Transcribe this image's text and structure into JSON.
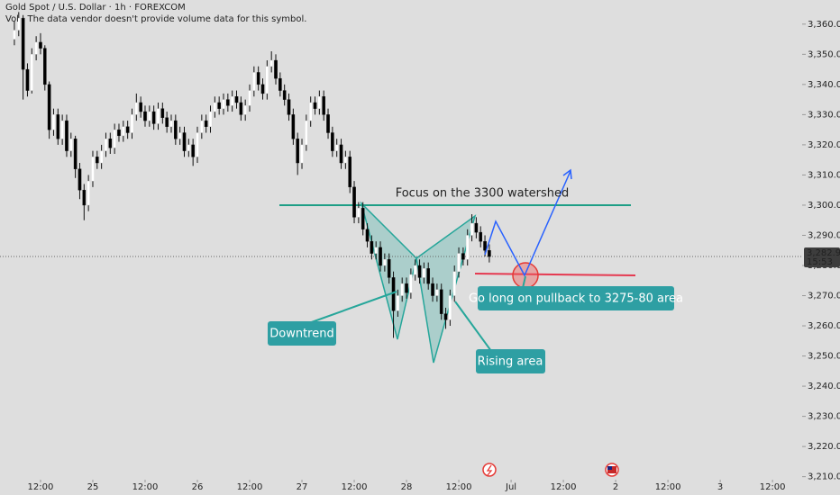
{
  "header": {
    "symbol_title": "Gold Spot / U.S. Dollar · 1h · FOREXCOM",
    "volume_note": "Vol · The data vendor doesn't provide volume data for this symbol."
  },
  "annotations": {
    "watershed": "Focus on the 3300 watershed",
    "downtrend": "Downtrend",
    "rising": "Rising area",
    "long": "Go long on pullback to 3275-80 area"
  },
  "chart_data": {
    "type": "candlestick",
    "up_color": "#ffffff",
    "down_color": "#000000",
    "outline_color": "#111111",
    "xlim": [
      -3.3,
      180.8
    ],
    "ylim": [
      3209,
      3368
    ],
    "xticks": [
      {
        "value": 6,
        "label": "12:00"
      },
      {
        "value": 18,
        "label": "25"
      },
      {
        "value": 30,
        "label": "12:00"
      },
      {
        "value": 42,
        "label": "26"
      },
      {
        "value": 54,
        "label": "12:00"
      },
      {
        "value": 66,
        "label": "27"
      },
      {
        "value": 78,
        "label": "12:00"
      },
      {
        "value": 90,
        "label": "28"
      },
      {
        "value": 102,
        "label": "12:00"
      },
      {
        "value": 114,
        "label": "Jul"
      },
      {
        "value": 126,
        "label": "12:00"
      },
      {
        "value": 138,
        "label": "2"
      },
      {
        "value": 150,
        "label": "12:00"
      },
      {
        "value": 162,
        "label": "3"
      },
      {
        "value": 174,
        "label": "12:00"
      }
    ],
    "yticks": [
      {
        "value": 3210,
        "label": "3,210.00"
      },
      {
        "value": 3220,
        "label": "3,220.00"
      },
      {
        "value": 3230,
        "label": "3,230.00"
      },
      {
        "value": 3240,
        "label": "3,240.00"
      },
      {
        "value": 3250,
        "label": "3,250.00"
      },
      {
        "value": 3260,
        "label": "3,260.00"
      },
      {
        "value": 3270,
        "label": "3,270.00"
      },
      {
        "value": 3280,
        "label": "3,280.00"
      },
      {
        "value": 3290,
        "label": "3,290.00"
      },
      {
        "value": 3300,
        "label": "3,300.00"
      },
      {
        "value": 3310,
        "label": "3,310.00"
      },
      {
        "value": 3320,
        "label": "3,320.00"
      },
      {
        "value": 3330,
        "label": "3,330.00"
      },
      {
        "value": 3340,
        "label": "3,340.00"
      },
      {
        "value": 3350,
        "label": "3,350.00"
      },
      {
        "value": 3360,
        "label": "3,360.00"
      }
    ],
    "last_price": {
      "value": 3282.97,
      "label": "3,282.97"
    },
    "countdown": "15:53",
    "watershed_level": 3300,
    "watershed_color": "#1e9e86",
    "entry_level": 3277,
    "entry_color": "#e53950",
    "open": [
      3355,
      3358,
      3362,
      3345,
      3338,
      3350,
      3354,
      3352,
      3340,
      3325,
      3330,
      3322,
      3328,
      3318,
      3322,
      3312,
      3305,
      3300,
      3308,
      3316,
      3314,
      3318,
      3322,
      3319,
      3325,
      3323,
      3326,
      3324,
      3330,
      3334,
      3331,
      3328,
      3331,
      3327,
      3332,
      3329,
      3326,
      3328,
      3322,
      3324,
      3318,
      3320,
      3316,
      3324,
      3328,
      3326,
      3331,
      3334,
      3332,
      3335,
      3333,
      3336,
      3334,
      3330,
      3333,
      3338,
      3344,
      3340,
      3337,
      3346,
      3348,
      3342,
      3338,
      3335,
      3330,
      3322,
      3314,
      3320,
      3328,
      3334,
      3332,
      3336,
      3330,
      3324,
      3318,
      3320,
      3314,
      3316,
      3306,
      3296,
      3299,
      3292,
      3288,
      3284,
      3286,
      3280,
      3282,
      3276,
      3265,
      3270,
      3274,
      3271,
      3277,
      3280,
      3276,
      3279,
      3274,
      3270,
      3272,
      3264,
      3262,
      3270,
      3278,
      3284,
      3282,
      3290,
      3294,
      3291,
      3288,
      3285
    ],
    "high": [
      3361,
      3364,
      3363,
      3347,
      3352,
      3356,
      3357,
      3353,
      3341,
      3332,
      3332,
      3330,
      3330,
      3324,
      3323,
      3314,
      3307,
      3310,
      3318,
      3318,
      3320,
      3324,
      3324,
      3327,
      3327,
      3328,
      3328,
      3332,
      3337,
      3336,
      3333,
      3333,
      3333,
      3334,
      3334,
      3331,
      3330,
      3330,
      3326,
      3326,
      3322,
      3322,
      3326,
      3330,
      3330,
      3333,
      3336,
      3336,
      3337,
      3337,
      3338,
      3338,
      3336,
      3335,
      3340,
      3346,
      3346,
      3342,
      3348,
      3351,
      3350,
      3344,
      3340,
      3337,
      3332,
      3324,
      3322,
      3330,
      3336,
      3336,
      3338,
      3338,
      3332,
      3326,
      3322,
      3322,
      3318,
      3318,
      3308,
      3301,
      3301,
      3294,
      3290,
      3288,
      3288,
      3284,
      3284,
      3278,
      3272,
      3276,
      3276,
      3279,
      3282,
      3282,
      3281,
      3281,
      3276,
      3274,
      3274,
      3266,
      3272,
      3280,
      3286,
      3286,
      3292,
      3297,
      3296,
      3293,
      3290,
      3287
    ],
    "low": [
      3353,
      3356,
      3335,
      3336,
      3337,
      3348,
      3350,
      3338,
      3322,
      3323,
      3320,
      3320,
      3316,
      3316,
      3309,
      3302,
      3295,
      3298,
      3306,
      3312,
      3312,
      3316,
      3317,
      3317,
      3321,
      3321,
      3322,
      3322,
      3328,
      3329,
      3326,
      3326,
      3325,
      3325,
      3327,
      3324,
      3324,
      3320,
      3320,
      3316,
      3316,
      3313,
      3314,
      3322,
      3324,
      3324,
      3329,
      3330,
      3330,
      3331,
      3331,
      3332,
      3328,
      3328,
      3331,
      3336,
      3338,
      3335,
      3335,
      3344,
      3340,
      3336,
      3333,
      3328,
      3320,
      3310,
      3312,
      3318,
      3326,
      3330,
      3330,
      3328,
      3322,
      3316,
      3316,
      3312,
      3312,
      3304,
      3294,
      3294,
      3290,
      3286,
      3282,
      3282,
      3278,
      3278,
      3274,
      3256,
      3263,
      3268,
      3269,
      3269,
      3275,
      3274,
      3274,
      3272,
      3268,
      3268,
      3262,
      3259,
      3260,
      3268,
      3276,
      3280,
      3280,
      3288,
      3289,
      3286,
      3283,
      3281
    ],
    "close": [
      3358,
      3362,
      3345,
      3338,
      3350,
      3354,
      3352,
      3340,
      3325,
      3330,
      3322,
      3328,
      3318,
      3322,
      3312,
      3305,
      3300,
      3308,
      3316,
      3314,
      3318,
      3322,
      3319,
      3325,
      3323,
      3326,
      3324,
      3330,
      3334,
      3331,
      3328,
      3331,
      3327,
      3332,
      3329,
      3326,
      3328,
      3322,
      3324,
      3318,
      3320,
      3316,
      3324,
      3328,
      3326,
      3331,
      3334,
      3332,
      3335,
      3333,
      3336,
      3334,
      3330,
      3333,
      3338,
      3344,
      3340,
      3337,
      3346,
      3348,
      3342,
      3338,
      3335,
      3330,
      3322,
      3314,
      3320,
      3328,
      3334,
      3332,
      3336,
      3330,
      3324,
      3318,
      3320,
      3314,
      3316,
      3306,
      3296,
      3299,
      3292,
      3288,
      3284,
      3286,
      3280,
      3282,
      3276,
      3265,
      3270,
      3274,
      3271,
      3277,
      3280,
      3276,
      3279,
      3274,
      3270,
      3272,
      3264,
      3262,
      3270,
      3278,
      3284,
      3282,
      3290,
      3294,
      3291,
      3288,
      3285,
      3282.97
    ]
  }
}
